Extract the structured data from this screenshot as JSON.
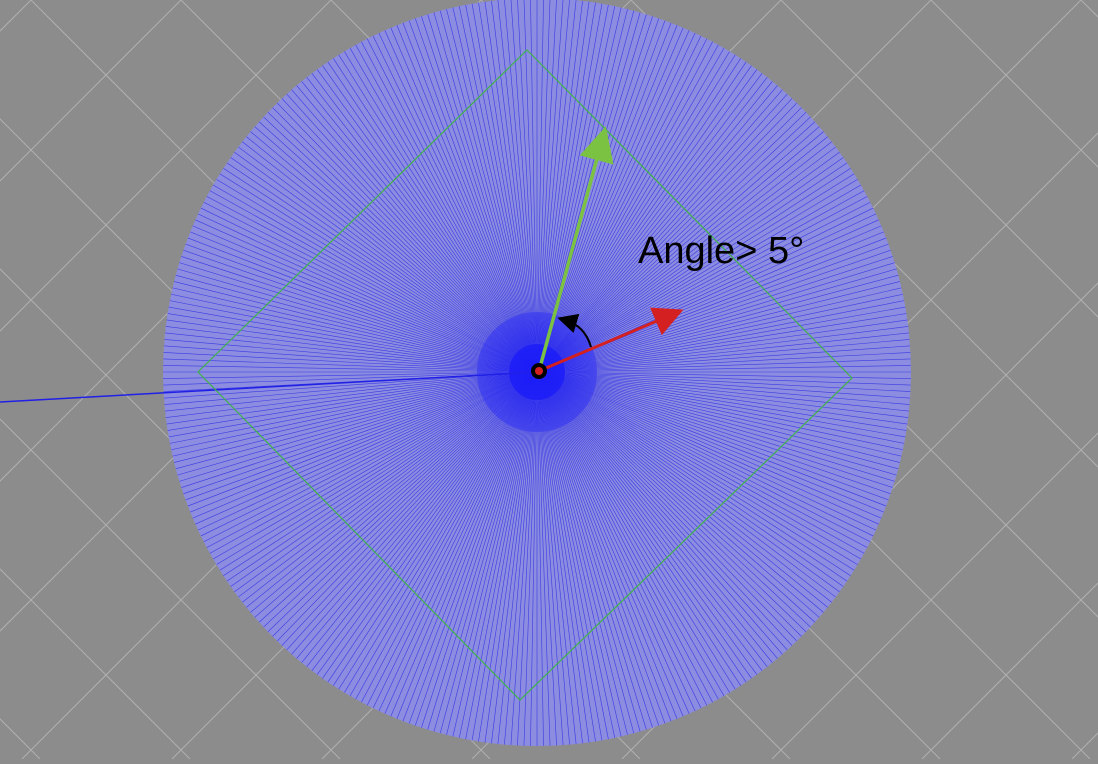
{
  "annotation": {
    "label": "Angle> 5°"
  },
  "colors": {
    "background": "#8c8c8c",
    "grid_lines": "#b4b4b4",
    "disk_fill": "#8c8ce0",
    "ray_lines": "#2020e6",
    "diamond_outline": "#3fb24a",
    "arrow_green": "#7cc242",
    "arrow_red": "#d42020",
    "angle_arc": "#000000",
    "origin_point": "#000000"
  },
  "icons": {
    "green_arrow": "arrow-icon",
    "red_arrow": "arrow-icon",
    "angle_arc": "curved-arrow-icon",
    "origin": "dot-icon"
  }
}
